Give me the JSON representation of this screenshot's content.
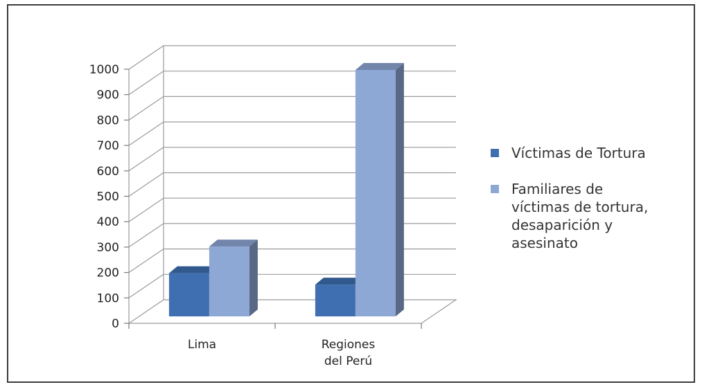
{
  "chart_data": {
    "type": "bar",
    "categories": [
      "Lima",
      "Regiones\ndel Perú"
    ],
    "series": [
      {
        "name": "Víctimas de Tortura",
        "values": [
          170,
          125
        ],
        "color": "#3f6fb0"
      },
      {
        "name": "Familiares de\nvíctimas de tortura,\ndesaparición y\nasesinato",
        "values": [
          275,
          970
        ],
        "color": "#8ea8d6"
      }
    ],
    "ylim": [
      0,
      1000
    ],
    "yticks": [
      "0",
      "100",
      "200",
      "300",
      "400",
      "500",
      "600",
      "700",
      "800",
      "900",
      "1000"
    ],
    "grid": true,
    "legend": "right",
    "title": "",
    "xlabel": "",
    "ylabel": ""
  }
}
